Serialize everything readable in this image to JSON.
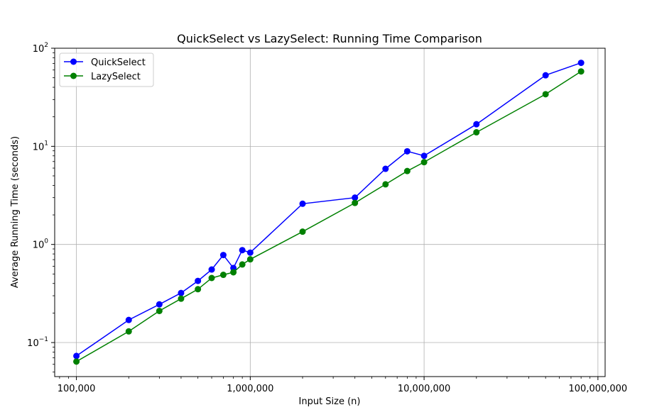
{
  "chart_data": {
    "type": "line",
    "title": "QuickSelect vs LazySelect: Running Time Comparison",
    "xlabel": "Input Size (n)",
    "ylabel": "Average Running Time (seconds)",
    "xscale": "log",
    "yscale": "log",
    "xlim": [
      75000,
      110000000
    ],
    "ylim": [
      0.045,
      100
    ],
    "grid": true,
    "legend_position": "upper-left",
    "x": [
      100000,
      200000,
      300000,
      400000,
      500000,
      600000,
      700000,
      800000,
      900000,
      1000000,
      2000000,
      4000000,
      6000000,
      8000000,
      10000000,
      20000000,
      50000000,
      80000000
    ],
    "series": [
      {
        "name": "QuickSelect",
        "color": "#0000ff",
        "values": [
          0.073,
          0.17,
          0.245,
          0.32,
          0.425,
          0.555,
          0.78,
          0.575,
          0.875,
          0.825,
          2.6,
          3.0,
          5.9,
          8.9,
          8.0,
          16.8,
          53,
          71
        ]
      },
      {
        "name": "LazySelect",
        "color": "#008000",
        "values": [
          0.064,
          0.13,
          0.21,
          0.28,
          0.35,
          0.455,
          0.49,
          0.52,
          0.625,
          0.705,
          1.35,
          2.65,
          4.1,
          5.6,
          6.9,
          13.9,
          34,
          58
        ]
      }
    ],
    "x_ticks": [
      {
        "value": 100000,
        "label": "100,000"
      },
      {
        "value": 1000000,
        "label": "1,000,000"
      },
      {
        "value": 10000000,
        "label": "10,000,000"
      },
      {
        "value": 100000000,
        "label": "100,000,000"
      }
    ],
    "y_ticks": [
      {
        "value": 0.1,
        "base": "10",
        "exp": "−1"
      },
      {
        "value": 1,
        "base": "10",
        "exp": "0"
      },
      {
        "value": 10,
        "base": "10",
        "exp": "1"
      },
      {
        "value": 100,
        "base": "10",
        "exp": "2"
      }
    ]
  }
}
